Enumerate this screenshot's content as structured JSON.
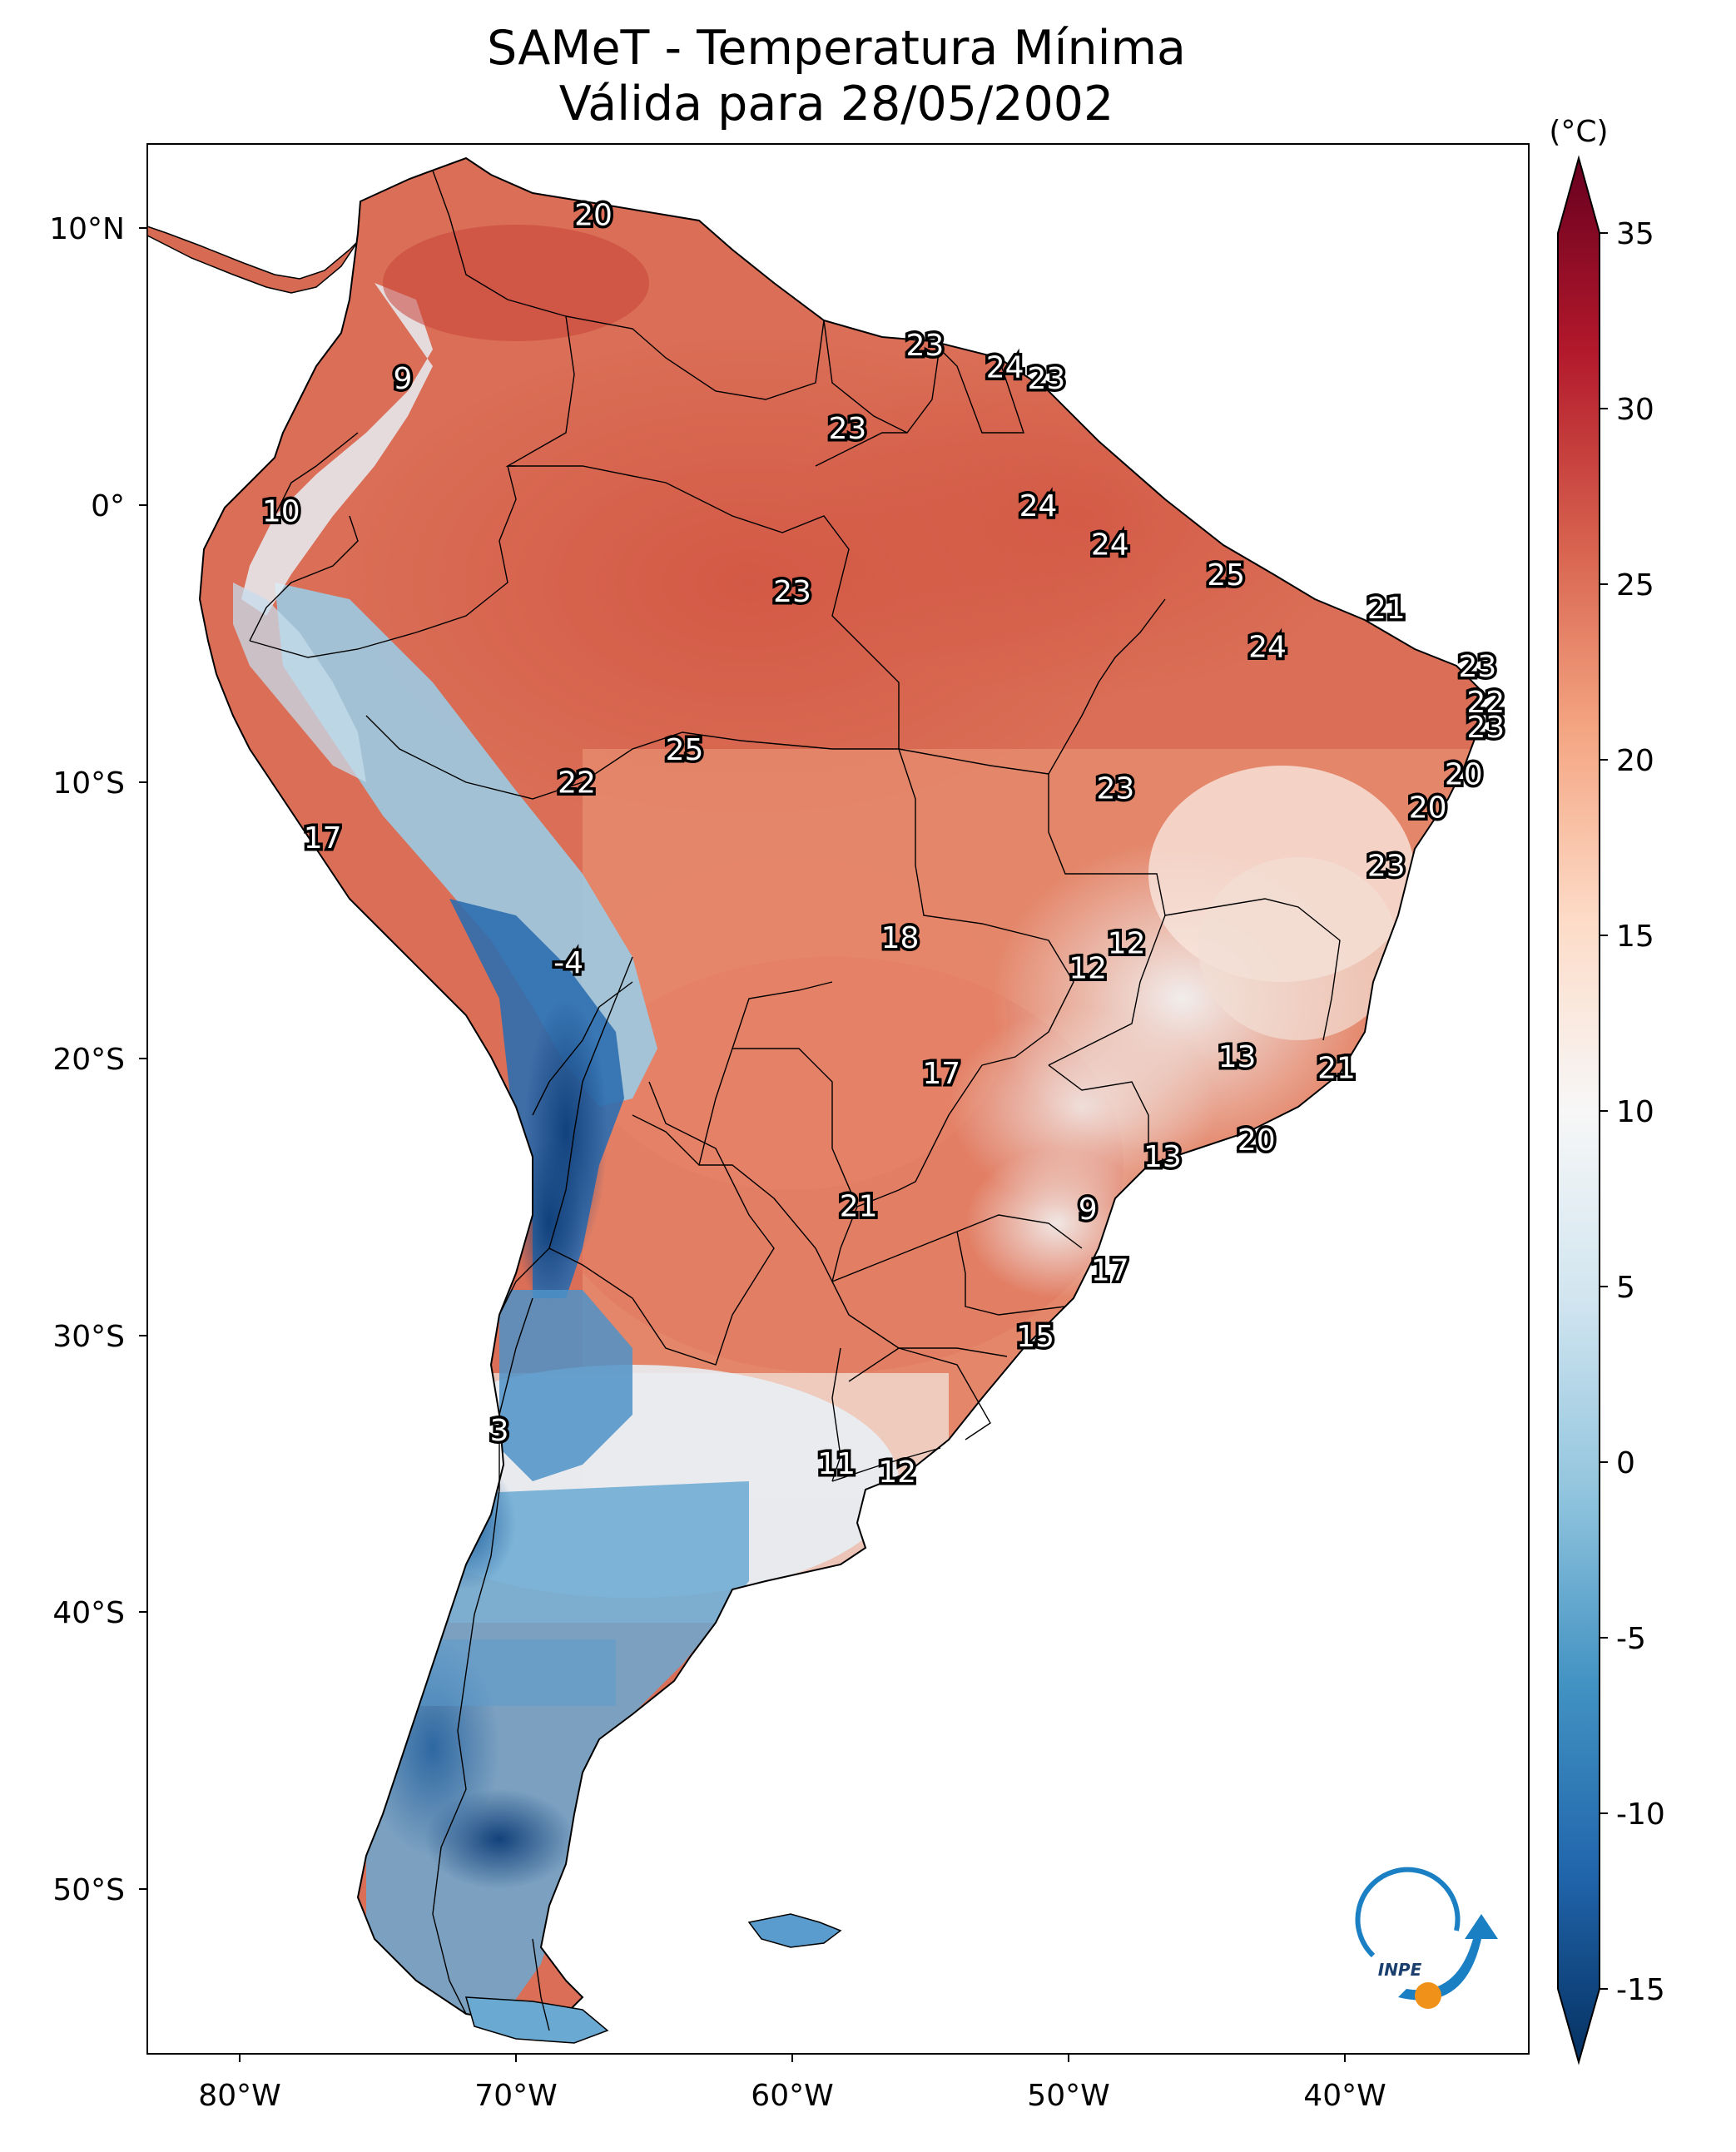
{
  "title": {
    "line1": "SAMeT - Temperatura Mínima",
    "line2": "Válida para 28/05/2002"
  },
  "colorbar": {
    "unit_label": "(°C)",
    "ticks": [
      "35",
      "30",
      "25",
      "20",
      "15",
      "10",
      "5",
      "0",
      "-5",
      "-10",
      "-15"
    ],
    "vmin": -15,
    "vmax": 35,
    "extend": "both",
    "colormap": "RdBu_r",
    "colors": [
      "#053061",
      "#2166ac",
      "#4393c3",
      "#92c5de",
      "#d1e5f0",
      "#f7f7f7",
      "#fddbc7",
      "#f4a582",
      "#d6604d",
      "#b2182b",
      "#67001f"
    ]
  },
  "axes": {
    "lat_labels": [
      "10°N",
      "0°",
      "10°S",
      "20°S",
      "30°S",
      "40°S",
      "50°S"
    ],
    "lon_labels": [
      "80°W",
      "70°W",
      "60°W",
      "50°W",
      "40°W"
    ]
  },
  "chart_data": {
    "type": "heatmap",
    "title": "SAMeT - Temperatura Mínima Válida para 28/05/2002",
    "variable": "Minimum temperature",
    "unit": "°C",
    "lon_range": [
      -83,
      -33
    ],
    "lat_range": [
      -56,
      13
    ],
    "city_values": [
      {
        "value": "20",
        "lon": -67.2,
        "lat": 10.5
      },
      {
        "value": "9",
        "lon": -74.1,
        "lat": 4.6
      },
      {
        "value": "23",
        "lon": -55.2,
        "lat": 5.8
      },
      {
        "value": "24",
        "lon": -52.3,
        "lat": 5.0
      },
      {
        "value": "23",
        "lon": -50.8,
        "lat": 4.6
      },
      {
        "value": "23",
        "lon": -58.0,
        "lat": 2.8
      },
      {
        "value": "10",
        "lon": -78.5,
        "lat": -0.2
      },
      {
        "value": "24",
        "lon": -51.1,
        "lat": 0.0
      },
      {
        "value": "24",
        "lon": -48.5,
        "lat": -1.4
      },
      {
        "value": "25",
        "lon": -44.3,
        "lat": -2.5
      },
      {
        "value": "23",
        "lon": -60.0,
        "lat": -3.1
      },
      {
        "value": "21",
        "lon": -38.5,
        "lat": -3.7
      },
      {
        "value": "24",
        "lon": -42.8,
        "lat": -5.1
      },
      {
        "value": "23",
        "lon": -35.2,
        "lat": -5.8
      },
      {
        "value": "22",
        "lon": -34.9,
        "lat": -7.1
      },
      {
        "value": "23",
        "lon": -34.9,
        "lat": -8.0
      },
      {
        "value": "25",
        "lon": -63.9,
        "lat": -8.8
      },
      {
        "value": "20",
        "lon": -35.7,
        "lat": -9.7
      },
      {
        "value": "22",
        "lon": -67.8,
        "lat": -10.0
      },
      {
        "value": "23",
        "lon": -48.3,
        "lat": -10.2
      },
      {
        "value": "20",
        "lon": -37.0,
        "lat": -10.9
      },
      {
        "value": "17",
        "lon": -77.0,
        "lat": -12.0
      },
      {
        "value": "23",
        "lon": -38.5,
        "lat": -13.0
      },
      {
        "value": "18",
        "lon": -56.1,
        "lat": -15.6
      },
      {
        "value": "12",
        "lon": -47.9,
        "lat": -15.8
      },
      {
        "value": "12",
        "lon": -49.3,
        "lat": -16.7
      },
      {
        "value": "-4",
        "lon": -68.1,
        "lat": -16.5
      },
      {
        "value": "13",
        "lon": -43.9,
        "lat": -19.9
      },
      {
        "value": "17",
        "lon": -54.6,
        "lat": -20.5
      },
      {
        "value": "21",
        "lon": -40.3,
        "lat": -20.3
      },
      {
        "value": "20",
        "lon": -43.2,
        "lat": -22.9
      },
      {
        "value": "13",
        "lon": -46.6,
        "lat": -23.5
      },
      {
        "value": "21",
        "lon": -57.6,
        "lat": -25.3
      },
      {
        "value": "9",
        "lon": -49.3,
        "lat": -25.4
      },
      {
        "value": "17",
        "lon": -48.5,
        "lat": -27.6
      },
      {
        "value": "15",
        "lon": -51.2,
        "lat": -30.0
      },
      {
        "value": "3",
        "lon": -70.6,
        "lat": -33.4
      },
      {
        "value": "11",
        "lon": -58.4,
        "lat": -34.6
      },
      {
        "value": "12",
        "lon": -56.2,
        "lat": -34.9
      }
    ]
  },
  "logo": {
    "text": "INPE"
  }
}
